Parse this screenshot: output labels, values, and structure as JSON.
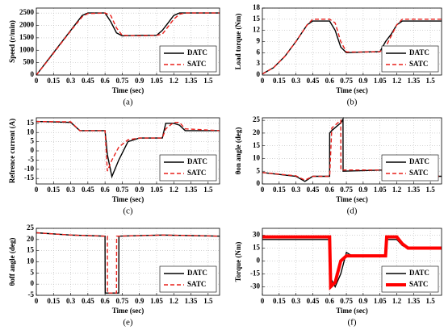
{
  "chart_data": [
    {
      "type": "line",
      "caption": "(a)",
      "ylabel": "Speed (r/min)",
      "xlabel": "Time (sec)",
      "x": [
        0,
        0.1,
        0.2,
        0.3,
        0.4,
        0.45,
        0.6,
        0.65,
        0.7,
        0.75,
        0.9,
        1.05,
        1.1,
        1.15,
        1.2,
        1.25,
        1.3,
        1.6
      ],
      "series": [
        {
          "name": "DATC",
          "color": "#000000",
          "line_style": "solid",
          "values": [
            0,
            600,
            1200,
            1800,
            2400,
            2500,
            2500,
            2150,
            1700,
            1580,
            1600,
            1600,
            1800,
            2100,
            2400,
            2500,
            2500,
            2500
          ]
        },
        {
          "name": "SATC",
          "color": "#e8201c",
          "line_style": "dashed",
          "values": [
            0,
            580,
            1180,
            1780,
            2350,
            2480,
            2500,
            2400,
            1900,
            1600,
            1580,
            1600,
            1650,
            1950,
            2250,
            2450,
            2500,
            2500
          ]
        }
      ],
      "xlim": [
        0,
        1.6
      ],
      "xticks": [
        0,
        0.15,
        0.3,
        0.45,
        0.6,
        0.75,
        0.9,
        1.05,
        1.2,
        1.35,
        1.5
      ],
      "ylim": [
        0,
        2700
      ],
      "yticks": [
        0,
        500,
        1000,
        1500,
        2000,
        2500
      ],
      "grid": true,
      "legend": "lower right"
    },
    {
      "type": "line",
      "caption": "(b)",
      "ylabel": "Load torque (Nm)",
      "xlabel": "Time (sec)",
      "x": [
        0,
        0.1,
        0.2,
        0.3,
        0.4,
        0.45,
        0.6,
        0.65,
        0.7,
        0.75,
        0.9,
        1.05,
        1.1,
        1.15,
        1.2,
        1.25,
        1.3,
        1.6
      ],
      "series": [
        {
          "name": "DATC",
          "color": "#000000",
          "line_style": "solid",
          "values": [
            0.3,
            2,
            5,
            9,
            13.5,
            14.5,
            14.5,
            12,
            7.5,
            6,
            6.2,
            6.3,
            9,
            11,
            13.5,
            14.5,
            14.5,
            14.5
          ]
        },
        {
          "name": "SATC",
          "color": "#e8201c",
          "line_style": "dashed",
          "values": [
            0.3,
            2,
            5,
            9,
            13.5,
            15,
            15,
            14,
            9,
            6.2,
            6.2,
            6.3,
            7.5,
            10.5,
            13.5,
            15,
            15,
            15
          ]
        }
      ],
      "xlim": [
        0,
        1.6
      ],
      "xticks": [
        0,
        0.15,
        0.3,
        0.45,
        0.6,
        0.75,
        0.9,
        1.05,
        1.2,
        1.35,
        1.5
      ],
      "ylim": [
        0,
        18
      ],
      "yticks": [
        0,
        3,
        6,
        9,
        12,
        15,
        18
      ],
      "grid": true,
      "legend": "lower right"
    },
    {
      "type": "line",
      "caption": "(c)",
      "ylabel": "Refrence current (A)",
      "xlabel": "Time (sec)",
      "x": [
        0,
        0.3,
        0.38,
        0.6,
        0.62,
        0.66,
        0.72,
        0.8,
        0.9,
        1.1,
        1.13,
        1.2,
        1.25,
        1.3,
        1.6
      ],
      "series": [
        {
          "name": "DATC",
          "color": "#000000",
          "line_style": "solid",
          "values": [
            16,
            15.5,
            11,
            11,
            -2,
            -14,
            -5,
            5,
            7,
            7,
            15,
            15,
            14,
            11,
            11
          ]
        },
        {
          "name": "SATC",
          "color": "#e8201c",
          "line_style": "dashed",
          "values": [
            16,
            15.8,
            11,
            11,
            -11,
            -5,
            2,
            6,
            7,
            7,
            12,
            15.5,
            15.5,
            12,
            11
          ]
        }
      ],
      "xlim": [
        0,
        1.6
      ],
      "xticks": [
        0,
        0.15,
        0.3,
        0.45,
        0.6,
        0.75,
        0.9,
        1.05,
        1.2,
        1.35,
        1.5
      ],
      "ylim": [
        -18,
        18
      ],
      "yticks": [
        -15,
        -10,
        -5,
        0,
        5,
        10,
        15
      ],
      "grid": true,
      "legend": "lower right"
    },
    {
      "type": "line",
      "caption": "(d)",
      "ylabel": "θon angle (deg)",
      "xlabel": "Time (sec)",
      "x": [
        0,
        0.3,
        0.38,
        0.45,
        0.6,
        0.601,
        0.62,
        0.7,
        0.701,
        0.72,
        0.721,
        1.1,
        1.12,
        1.25,
        1.3,
        1.6
      ],
      "series": [
        {
          "name": "DATC",
          "color": "#000000",
          "line_style": "solid",
          "values": [
            4.5,
            3,
            1,
            3,
            3,
            20,
            21,
            24,
            24,
            25.5,
            5,
            5.5,
            3,
            1.5,
            3,
            3
          ]
        },
        {
          "name": "SATC",
          "color": "#e8201c",
          "line_style": "dashed",
          "values": [
            4.5,
            3.2,
            1.5,
            3,
            3,
            3,
            22,
            25,
            5.5,
            5.5,
            5.5,
            5.5,
            3.5,
            2,
            3,
            3
          ]
        }
      ],
      "xlim": [
        0,
        1.6
      ],
      "xticks": [
        0,
        0.15,
        0.3,
        0.45,
        0.6,
        0.75,
        0.9,
        1.05,
        1.2,
        1.35,
        1.5
      ],
      "ylim": [
        0,
        26
      ],
      "yticks": [
        0,
        5,
        10,
        15,
        20,
        25
      ],
      "grid": true,
      "legend": "lower right"
    },
    {
      "type": "line",
      "caption": "(e)",
      "ylabel": "θoff angle (deg)",
      "xlabel": "Time (sec)",
      "x": [
        0,
        0.3,
        0.6,
        0.601,
        0.62,
        0.621,
        0.7,
        0.701,
        0.72,
        0.721,
        1.1,
        1.6
      ],
      "series": [
        {
          "name": "DATC",
          "color": "#000000",
          "line_style": "solid",
          "values": [
            23,
            22,
            21.5,
            -4,
            -4,
            -4,
            -4,
            -4,
            -4,
            21.5,
            22,
            21.5
          ]
        },
        {
          "name": "SATC",
          "color": "#e8201c",
          "line_style": "dashed",
          "values": [
            23,
            22,
            21.5,
            21.5,
            21.5,
            -4,
            -4,
            21.5,
            21.5,
            21.5,
            22,
            21.5
          ]
        }
      ],
      "xlim": [
        0,
        1.6
      ],
      "xticks": [
        0,
        0.15,
        0.3,
        0.45,
        0.6,
        0.75,
        0.9,
        1.05,
        1.2,
        1.35,
        1.5
      ],
      "ylim": [
        -5,
        25
      ],
      "yticks": [
        -5,
        0,
        5,
        10,
        15,
        20,
        25
      ],
      "grid": true,
      "legend": "lower right"
    },
    {
      "type": "line",
      "caption": "(f)",
      "ylabel": "Torque (Nm)",
      "xlabel": "Time (sec)",
      "x": [
        0,
        0.6,
        0.61,
        0.65,
        0.7,
        0.75,
        0.8,
        1.1,
        1.11,
        1.2,
        1.25,
        1.3,
        1.6
      ],
      "series": [
        {
          "name": "DATC",
          "color": "#000000",
          "line_style": "solid",
          "values": [
            25,
            25,
            -20,
            -30,
            -15,
            10,
            6,
            5,
            25,
            25,
            18,
            15,
            15
          ]
        },
        {
          "name": "SATC",
          "color": "#ff0000",
          "line_style": "thick",
          "values": [
            28,
            28,
            -30,
            -25,
            0,
            6,
            6,
            6,
            28,
            28,
            20,
            15,
            15
          ]
        }
      ],
      "xlim": [
        0,
        1.6
      ],
      "xticks": [
        0,
        0.15,
        0.3,
        0.45,
        0.6,
        0.75,
        0.9,
        1.05,
        1.2,
        1.35,
        1.5
      ],
      "ylim": [
        -40,
        38
      ],
      "yticks": [
        -30,
        -15,
        0,
        15,
        30
      ],
      "grid": true,
      "legend": "lower right"
    }
  ]
}
